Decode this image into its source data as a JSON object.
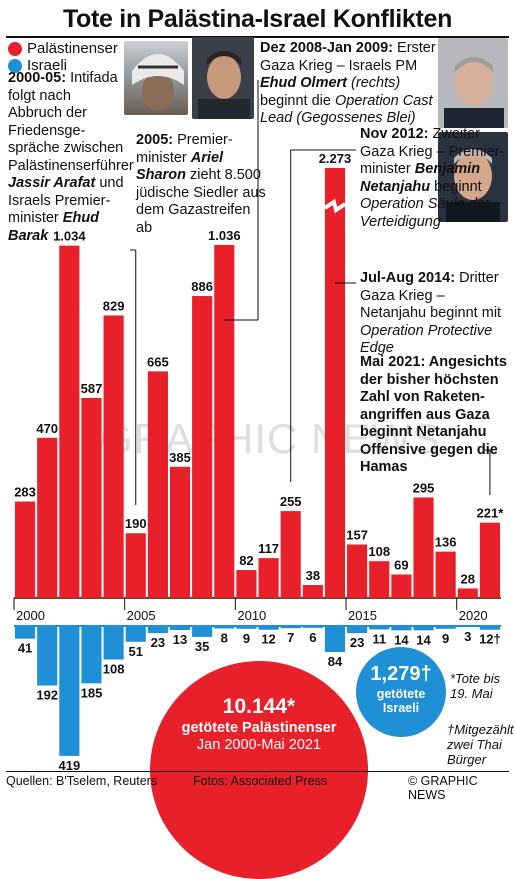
{
  "title": "Tote in Palästina-Israel Konflikten",
  "legend": [
    {
      "label": "Palästinenser",
      "color": "#e8202a"
    },
    {
      "label": "Israeli",
      "color": "#1f8fd6"
    }
  ],
  "annotations": {
    "a2000": {
      "p1": "2000-05:",
      "p2": " Intifada folgt nach Abbruch der Friedensge- spräche zwischen Palästinenserführer ",
      "p3": "Jassir Arafat",
      "p4": " und Israels Premier- minister ",
      "p5": "Ehud Barak"
    },
    "a2005": {
      "p1": "2005:",
      "p2": " Premier- minister ",
      "p3": "Ariel Sharon",
      "p4": " zieht 8.500 jüdische Siedler aus dem Gazastreifen ab"
    },
    "a2008": {
      "p1": "Dez 2008-Jan 2009:",
      "p2": " Erster Gaza Krieg – Israels PM ",
      "p3": "Ehud Olmert",
      "p4": " (rechts)",
      "p5": " beginnt die ",
      "p6": "Operation Cast Lead (Gegossenes Blei)"
    },
    "a2012": {
      "p1": "Nov 2012:",
      "p2": " Zweiter Gaza Krieg – Premier- minister ",
      "p3": "Benjamin Netanjahu",
      "p4": " beginnt ",
      "p5": "Operation Säule der Verteidigung"
    },
    "a2014": {
      "p1": "Jul-Aug 2014:",
      "p2": " Dritter Gaza Krieg – Netanjahu beginnt mit ",
      "p3": "Operation Protective Edge"
    },
    "a2021": {
      "p1": "Mai 2021: Angesichts der bisher höchsten Zahl von Raketen- angriffen aus Gaza beginnt Netanjahu Offensive gegen die Hamas"
    }
  },
  "totals": {
    "palestinians_value": "10.144*",
    "palestinians_label": "getötete Palästinenser",
    "palestinians_period": "Jan 2000-Mai 2021",
    "israelis_value": "1,279†",
    "israelis_label": "getötete Israeli"
  },
  "notes": {
    "star": "*Tote bis 19. Mai",
    "dagger": "†Mitgezählt zwei Thai Bürger"
  },
  "watermark": "GRAPHIC NEWS",
  "footer": {
    "sources": "Quellen: B'Tselem, Reuters",
    "photos": "Fotos: Associated Press",
    "credit": "© GRAPHIC NEWS"
  },
  "chart_data": {
    "type": "bar",
    "x": [
      2000,
      2001,
      2002,
      2003,
      2004,
      2005,
      2006,
      2007,
      2008,
      2009,
      2010,
      2011,
      2012,
      2013,
      2014,
      2015,
      2016,
      2017,
      2018,
      2019,
      2020,
      2021
    ],
    "x_tick_labels": [
      "2000",
      "2005",
      "2010",
      "2015",
      "2020"
    ],
    "series": [
      {
        "name": "Palästinenser",
        "color": "#e8202a",
        "values": [
          283,
          470,
          1034,
          587,
          829,
          190,
          665,
          385,
          886,
          1036,
          82,
          117,
          255,
          38,
          2273,
          157,
          108,
          69,
          295,
          136,
          28,
          221
        ],
        "labels": [
          "283",
          "470",
          "1.034",
          "587",
          "829",
          "190",
          "665",
          "385",
          "886",
          "1.036",
          "82",
          "117",
          "255",
          "38",
          "2.273",
          "157",
          "108",
          "69",
          "295",
          "136",
          "28",
          "221*"
        ]
      },
      {
        "name": "Israeli",
        "color": "#1f8fd6",
        "values": [
          41,
          192,
          419,
          185,
          108,
          51,
          23,
          13,
          35,
          8,
          9,
          12,
          7,
          6,
          84,
          23,
          11,
          14,
          14,
          9,
          3,
          12
        ],
        "labels": [
          "41",
          "192",
          "419",
          "185",
          "108",
          "51",
          "23",
          "13",
          "35",
          "8",
          "9",
          "12",
          "7",
          "6",
          "84",
          "23",
          "11",
          "14",
          "14",
          "9",
          "3",
          "12†"
        ]
      }
    ],
    "y_break": true
  }
}
